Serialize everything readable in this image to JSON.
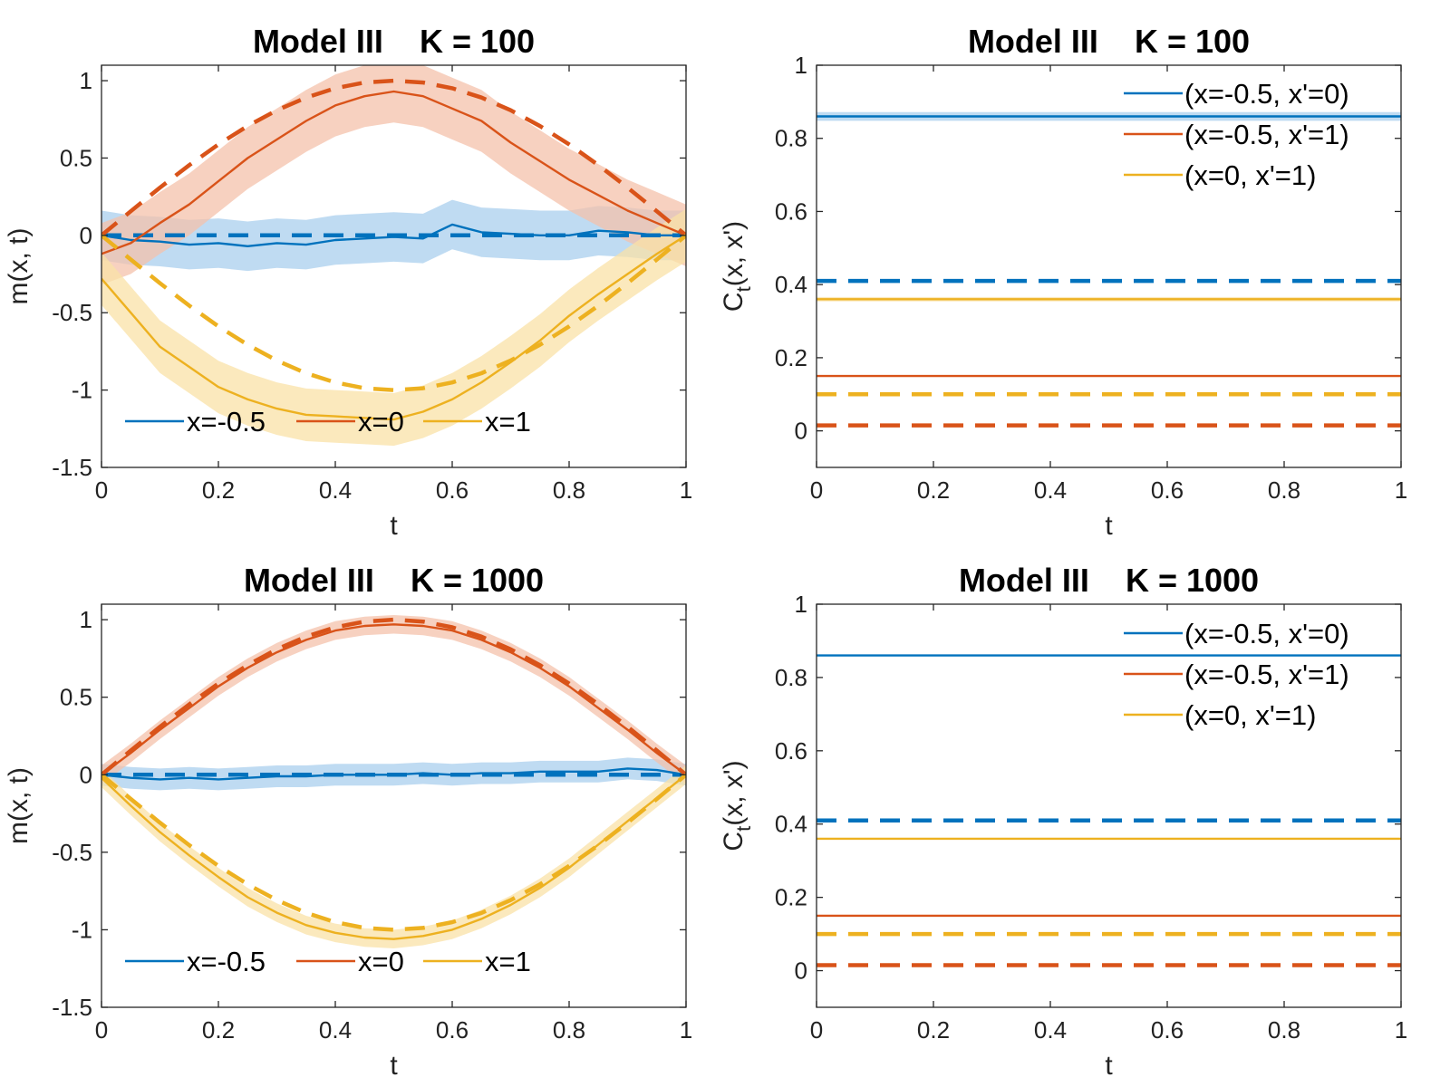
{
  "colors": {
    "blue": "#0072BD",
    "red": "#D95319",
    "yellow": "#EDB120"
  },
  "chart_data": [
    {
      "type": "line",
      "title": "Model III    K = 100",
      "xlabel": "t",
      "ylabel": "m(x, t)",
      "xlim": [
        0,
        1
      ],
      "ylim": [
        -1.5,
        1.1
      ],
      "xticks": [
        0,
        0.2,
        0.4,
        0.6,
        0.8,
        1
      ],
      "xtick_labels": [
        "0",
        "0.2",
        "0.4",
        "0.6",
        "0.8",
        "1"
      ],
      "yticks": [
        -1.5,
        -1,
        -0.5,
        0,
        0.5,
        1
      ],
      "ytick_labels": [
        "-1.5",
        "-1",
        "-0.5",
        "0",
        "0.5",
        "1"
      ],
      "legend": {
        "position": "bottom",
        "entries": [
          "x=-0.5",
          "x=0",
          "x=1"
        ]
      },
      "x": [
        0,
        0.05,
        0.1,
        0.15,
        0.2,
        0.25,
        0.3,
        0.35,
        0.4,
        0.45,
        0.5,
        0.55,
        0.6,
        0.65,
        0.7,
        0.75,
        0.8,
        0.85,
        0.9,
        0.95,
        1
      ],
      "series": [
        {
          "name": "x=-0.5",
          "color": "blue",
          "style": "solid",
          "values": [
            0.0,
            -0.03,
            -0.04,
            -0.06,
            -0.05,
            -0.07,
            -0.05,
            -0.06,
            -0.03,
            -0.02,
            -0.01,
            -0.02,
            0.07,
            0.02,
            0.01,
            0.0,
            0.0,
            0.03,
            0.02,
            0.0,
            0.0
          ],
          "band": 0.16
        },
        {
          "name": "x=-0.5 (exact)",
          "color": "blue",
          "style": "dashed",
          "values": [
            0,
            0,
            0,
            0,
            0,
            0,
            0,
            0,
            0,
            0,
            0,
            0,
            0,
            0,
            0,
            0,
            0,
            0,
            0,
            0,
            0
          ]
        },
        {
          "name": "x=0",
          "color": "red",
          "style": "solid",
          "values": [
            -0.12,
            -0.05,
            0.08,
            0.2,
            0.35,
            0.5,
            0.62,
            0.74,
            0.84,
            0.9,
            0.93,
            0.9,
            0.82,
            0.74,
            0.6,
            0.48,
            0.36,
            0.26,
            0.16,
            0.08,
            0.0
          ],
          "band": 0.2
        },
        {
          "name": "x=0 (exact)",
          "color": "red",
          "style": "dashed",
          "values": [
            0,
            0.156,
            0.309,
            0.454,
            0.588,
            0.707,
            0.809,
            0.891,
            0.951,
            0.988,
            1,
            0.988,
            0.951,
            0.891,
            0.809,
            0.707,
            0.588,
            0.454,
            0.309,
            0.156,
            0
          ]
        },
        {
          "name": "x=1",
          "color": "yellow",
          "style": "solid",
          "values": [
            -0.28,
            -0.5,
            -0.72,
            -0.85,
            -0.98,
            -1.06,
            -1.12,
            -1.16,
            -1.17,
            -1.18,
            -1.19,
            -1.14,
            -1.06,
            -0.95,
            -0.82,
            -0.68,
            -0.52,
            -0.38,
            -0.25,
            -0.12,
            0.0
          ],
          "band": 0.17
        },
        {
          "name": "x=1 (exact)",
          "color": "yellow",
          "style": "dashed",
          "values": [
            0,
            -0.156,
            -0.309,
            -0.454,
            -0.588,
            -0.707,
            -0.809,
            -0.891,
            -0.951,
            -0.988,
            -1,
            -0.988,
            -0.951,
            -0.891,
            -0.809,
            -0.707,
            -0.588,
            -0.454,
            -0.309,
            -0.156,
            0
          ]
        }
      ]
    },
    {
      "type": "line",
      "title": "Model III    K = 100",
      "xlabel": "t",
      "ylabel": "C_t(x, x')",
      "xlim": [
        0,
        1
      ],
      "ylim": [
        -0.1,
        1
      ],
      "xticks": [
        0,
        0.2,
        0.4,
        0.6,
        0.8,
        1
      ],
      "xtick_labels": [
        "0",
        "0.2",
        "0.4",
        "0.6",
        "0.8",
        "1"
      ],
      "yticks": [
        0,
        0.2,
        0.4,
        0.6,
        0.8,
        1
      ],
      "ytick_labels": [
        "0",
        "0.2",
        "0.4",
        "0.6",
        "0.8",
        "1"
      ],
      "legend": {
        "position": "top-right",
        "entries": [
          "(x=-0.5, x'=0)",
          "(x=-0.5, x'=1)",
          "(x=0, x'=1)"
        ]
      },
      "x": [
        0,
        1
      ],
      "series": [
        {
          "name": "(x=-0.5, x'=0)",
          "color": "blue",
          "style": "solid",
          "values": [
            0.86,
            0.86
          ],
          "band": 0.012
        },
        {
          "name": "(x=-0.5, x'=1)",
          "color": "red",
          "style": "solid",
          "values": [
            0.15,
            0.15
          ],
          "band": 0
        },
        {
          "name": "(x=0, x'=1)",
          "color": "yellow",
          "style": "solid",
          "values": [
            0.36,
            0.36
          ],
          "band": 0.006
        },
        {
          "name": "(x=-0.5, x'=0) exact",
          "color": "blue",
          "style": "dashed",
          "values": [
            0.41,
            0.41
          ]
        },
        {
          "name": "(x=-0.5, x'=1) exact",
          "color": "red",
          "style": "dashed",
          "values": [
            0.015,
            0.015
          ]
        },
        {
          "name": "(x=0, x'=1) exact",
          "color": "yellow",
          "style": "dashed",
          "values": [
            0.1,
            0.1
          ]
        }
      ]
    },
    {
      "type": "line",
      "title": "Model III    K = 1000",
      "xlabel": "t",
      "ylabel": "m(x, t)",
      "xlim": [
        0,
        1
      ],
      "ylim": [
        -1.5,
        1.1
      ],
      "xticks": [
        0,
        0.2,
        0.4,
        0.6,
        0.8,
        1
      ],
      "xtick_labels": [
        "0",
        "0.2",
        "0.4",
        "0.6",
        "0.8",
        "1"
      ],
      "yticks": [
        -1.5,
        -1,
        -0.5,
        0,
        0.5,
        1
      ],
      "ytick_labels": [
        "-1.5",
        "-1",
        "-0.5",
        "0",
        "0.5",
        "1"
      ],
      "legend": {
        "position": "bottom",
        "entries": [
          "x=-0.5",
          "x=0",
          "x=1"
        ]
      },
      "x": [
        0,
        0.05,
        0.1,
        0.15,
        0.2,
        0.25,
        0.3,
        0.35,
        0.4,
        0.45,
        0.5,
        0.55,
        0.6,
        0.65,
        0.7,
        0.75,
        0.8,
        0.85,
        0.9,
        0.95,
        1
      ],
      "series": [
        {
          "name": "x=-0.5",
          "color": "blue",
          "style": "solid",
          "values": [
            0.0,
            -0.02,
            -0.03,
            -0.02,
            -0.03,
            -0.02,
            -0.01,
            -0.01,
            0.0,
            0.0,
            0.0,
            0.01,
            0.0,
            0.01,
            0.01,
            0.02,
            0.02,
            0.02,
            0.04,
            0.03,
            0.0
          ],
          "band": 0.07
        },
        {
          "name": "x=-0.5 (exact)",
          "color": "blue",
          "style": "dashed",
          "values": [
            0,
            0,
            0,
            0,
            0,
            0,
            0,
            0,
            0,
            0,
            0,
            0,
            0,
            0,
            0,
            0,
            0,
            0,
            0,
            0,
            0
          ]
        },
        {
          "name": "x=0",
          "color": "red",
          "style": "solid",
          "values": [
            0,
            0.14,
            0.29,
            0.43,
            0.57,
            0.69,
            0.79,
            0.87,
            0.93,
            0.96,
            0.97,
            0.96,
            0.93,
            0.87,
            0.79,
            0.69,
            0.57,
            0.43,
            0.29,
            0.14,
            0
          ],
          "band": 0.06
        },
        {
          "name": "x=0 (exact)",
          "color": "red",
          "style": "dashed",
          "values": [
            0,
            0.156,
            0.309,
            0.454,
            0.588,
            0.707,
            0.809,
            0.891,
            0.951,
            0.988,
            1,
            0.988,
            0.951,
            0.891,
            0.809,
            0.707,
            0.588,
            0.454,
            0.309,
            0.156,
            0
          ]
        },
        {
          "name": "x=1",
          "color": "yellow",
          "style": "solid",
          "values": [
            -0.02,
            -0.2,
            -0.37,
            -0.52,
            -0.66,
            -0.79,
            -0.89,
            -0.97,
            -1.02,
            -1.05,
            -1.06,
            -1.04,
            -1.0,
            -0.93,
            -0.84,
            -0.73,
            -0.6,
            -0.45,
            -0.3,
            -0.15,
            0.0
          ],
          "band": 0.06
        },
        {
          "name": "x=1 (exact)",
          "color": "yellow",
          "style": "dashed",
          "values": [
            0,
            -0.156,
            -0.309,
            -0.454,
            -0.588,
            -0.707,
            -0.809,
            -0.891,
            -0.951,
            -0.988,
            -1,
            -0.988,
            -0.951,
            -0.891,
            -0.809,
            -0.707,
            -0.588,
            -0.454,
            -0.309,
            -0.156,
            0
          ]
        }
      ]
    },
    {
      "type": "line",
      "title": "Model III    K = 1000",
      "xlabel": "t",
      "ylabel": "C_t(x, x')",
      "xlim": [
        0,
        1
      ],
      "ylim": [
        -0.1,
        1
      ],
      "xticks": [
        0,
        0.2,
        0.4,
        0.6,
        0.8,
        1
      ],
      "xtick_labels": [
        "0",
        "0.2",
        "0.4",
        "0.6",
        "0.8",
        "1"
      ],
      "yticks": [
        0,
        0.2,
        0.4,
        0.6,
        0.8,
        1
      ],
      "ytick_labels": [
        "0",
        "0.2",
        "0.4",
        "0.6",
        "0.8",
        "1"
      ],
      "legend": {
        "position": "top-right",
        "entries": [
          "(x=-0.5, x'=0)",
          "(x=-0.5, x'=1)",
          "(x=0, x'=1)"
        ]
      },
      "x": [
        0,
        1
      ],
      "series": [
        {
          "name": "(x=-0.5, x'=0)",
          "color": "blue",
          "style": "solid",
          "values": [
            0.86,
            0.86
          ],
          "band": 0
        },
        {
          "name": "(x=-0.5, x'=1)",
          "color": "red",
          "style": "solid",
          "values": [
            0.15,
            0.15
          ],
          "band": 0
        },
        {
          "name": "(x=0, x'=1)",
          "color": "yellow",
          "style": "solid",
          "values": [
            0.36,
            0.36
          ],
          "band": 0
        },
        {
          "name": "(x=-0.5, x'=0) exact",
          "color": "blue",
          "style": "dashed",
          "values": [
            0.41,
            0.41
          ]
        },
        {
          "name": "(x=-0.5, x'=1) exact",
          "color": "red",
          "style": "dashed",
          "values": [
            0.015,
            0.015
          ]
        },
        {
          "name": "(x=0, x'=1) exact",
          "color": "yellow",
          "style": "dashed",
          "values": [
            0.1,
            0.1
          ]
        }
      ]
    }
  ]
}
